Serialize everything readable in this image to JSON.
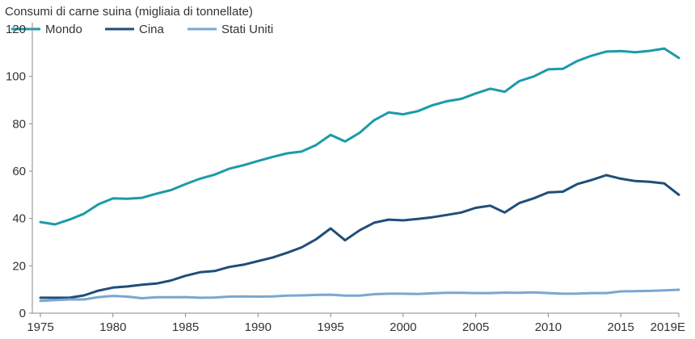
{
  "chart_data": {
    "type": "line",
    "title": "Consumi di carne suina (migliaia di tonnellate)",
    "xlabel": "",
    "ylabel": "",
    "ylim": [
      0,
      120
    ],
    "yticks": [
      0,
      20,
      40,
      60,
      80,
      100,
      120
    ],
    "x": [
      "1975",
      "1976",
      "1977",
      "1978",
      "1979",
      "1980",
      "1981",
      "1982",
      "1983",
      "1984",
      "1985",
      "1986",
      "1987",
      "1988",
      "1989",
      "1990",
      "1991",
      "1992",
      "1993",
      "1994",
      "1995",
      "1996",
      "1997",
      "1998",
      "1999",
      "2000",
      "2001",
      "2002",
      "2003",
      "2004",
      "2005",
      "2006",
      "2007",
      "2008",
      "2009",
      "2010",
      "2011",
      "2012",
      "2013",
      "2014",
      "2015",
      "2016",
      "2017",
      "2018",
      "2019E"
    ],
    "xtick_labels": [
      "1975",
      "1980",
      "1985",
      "1990",
      "1995",
      "2000",
      "2005",
      "2010",
      "2015",
      "2019E"
    ],
    "grid": false,
    "legend_position": "top-left",
    "series": [
      {
        "name": "Mondo",
        "color": "#1a9ba8",
        "values": [
          38.5,
          37.5,
          39.5,
          42,
          46,
          48.5,
          48.3,
          48.7,
          50.5,
          52,
          54.5,
          56.8,
          58.5,
          61,
          62.5,
          64.3,
          66,
          67.5,
          68.3,
          71,
          75.3,
          72.5,
          76.2,
          81.5,
          84.8,
          84,
          85.3,
          87.8,
          89.5,
          90.5,
          92.8,
          94.8,
          93.5,
          98,
          100,
          103,
          103.2,
          106.5,
          108.8,
          110.5,
          110.7,
          110.2,
          110.8,
          111.8,
          107.8
        ]
      },
      {
        "name": "Cina",
        "color": "#1f4e79",
        "values": [
          6.5,
          6.5,
          6.5,
          7.5,
          9.5,
          10.8,
          11.3,
          12,
          12.5,
          13.8,
          15.8,
          17.3,
          17.8,
          19.5,
          20.5,
          22,
          23.5,
          25.5,
          27.8,
          31.2,
          35.8,
          30.8,
          35,
          38.2,
          39.5,
          39.2,
          39.8,
          40.5,
          41.5,
          42.5,
          44.5,
          45.4,
          42.5,
          46.5,
          48.5,
          51,
          51.3,
          54.5,
          56.3,
          58.3,
          56.8,
          55.8,
          55.5,
          54.8,
          50
        ]
      },
      {
        "name": "Stati Uniti",
        "color": "#7aa7cf",
        "values": [
          5.2,
          5.5,
          5.8,
          5.8,
          6.8,
          7.3,
          7,
          6.3,
          6.7,
          6.7,
          6.8,
          6.5,
          6.6,
          7,
          7.1,
          7,
          7.1,
          7.4,
          7.5,
          7.7,
          7.8,
          7.4,
          7.4,
          8,
          8.2,
          8.2,
          8.1,
          8.4,
          8.6,
          8.6,
          8.5,
          8.5,
          8.7,
          8.6,
          8.8,
          8.5,
          8.2,
          8.3,
          8.5,
          8.5,
          9.2,
          9.3,
          9.4,
          9.6,
          9.9
        ]
      }
    ]
  }
}
